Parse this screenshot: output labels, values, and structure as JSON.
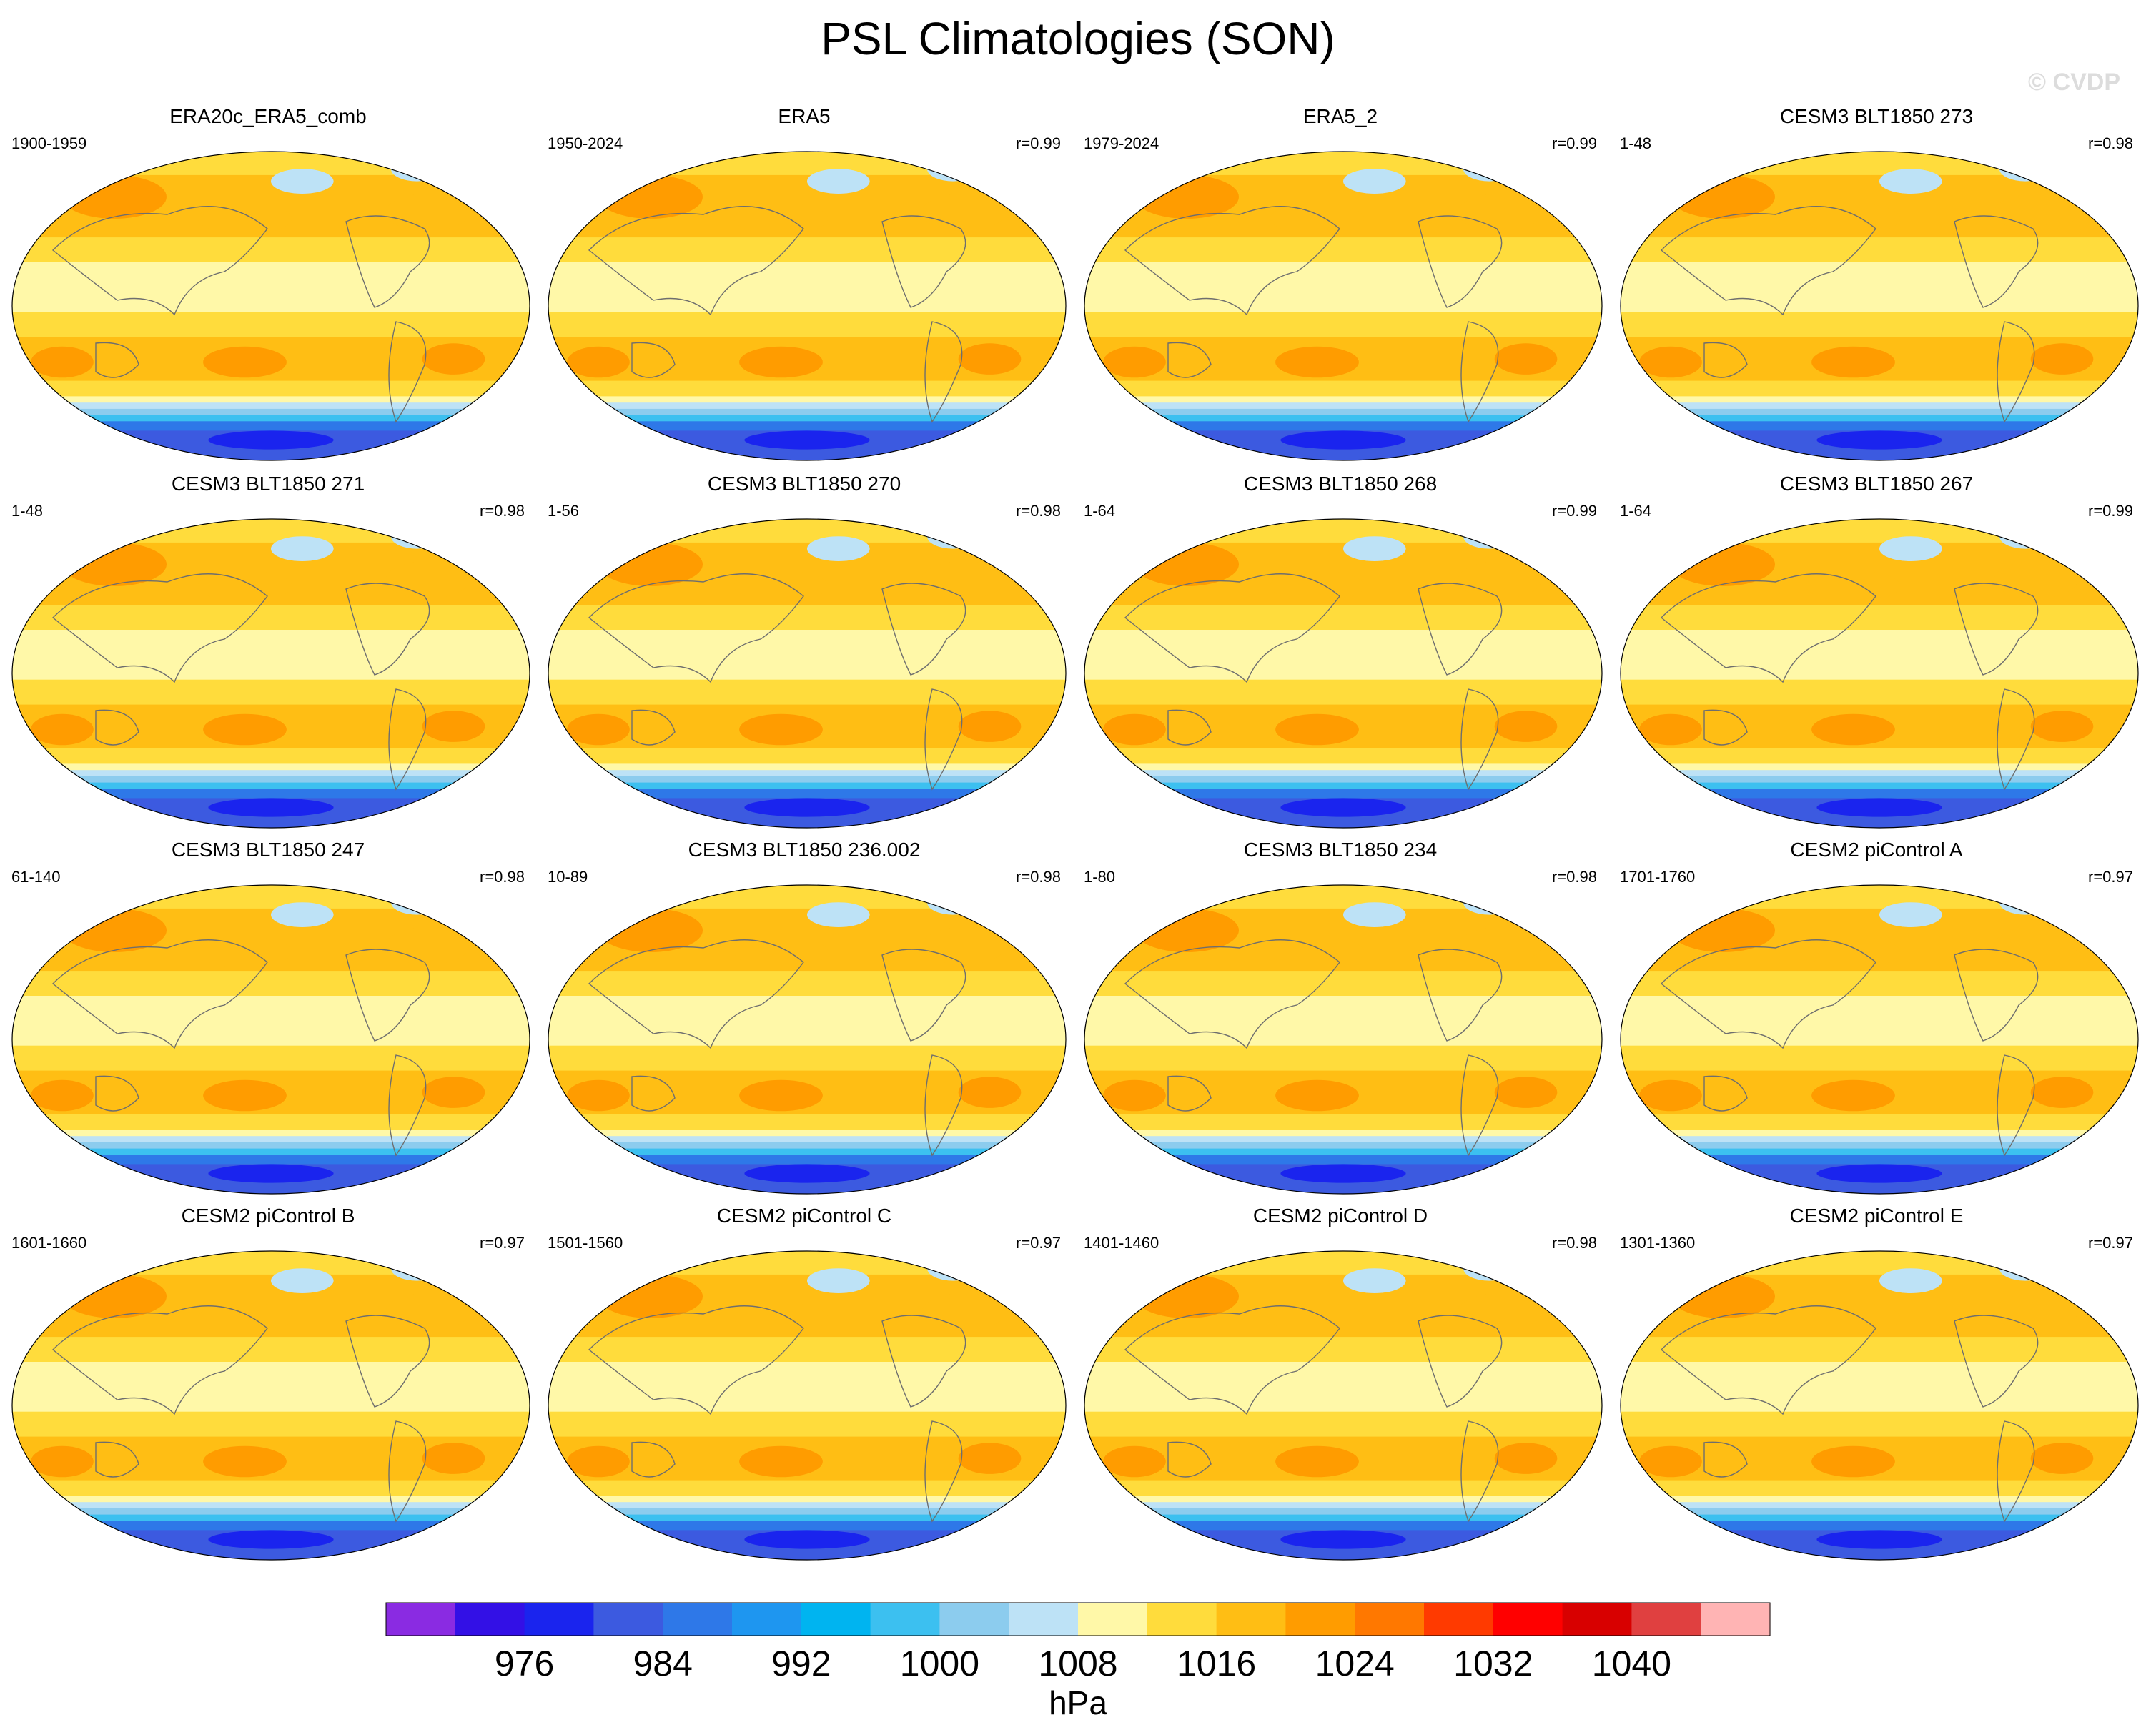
{
  "figure": {
    "title": "PSL Climatologies (SON)",
    "watermark": "© CVDP"
  },
  "chart_data": {
    "type": "heatmap",
    "map_projection": "Robinson",
    "title": "PSL Climatologies (SON)",
    "units": "hPa",
    "levels": [
      972,
      976,
      980,
      984,
      988,
      992,
      996,
      1000,
      1004,
      1008,
      1012,
      1016,
      1020,
      1024,
      1028,
      1032,
      1036,
      1040
    ],
    "colorbar_tick_labels": [
      "976",
      "984",
      "992",
      "1000",
      "1008",
      "1016",
      "1024",
      "1032",
      "1040"
    ],
    "colorbar_colors": [
      "#8a2be2",
      "#3310e6",
      "#1a24ee",
      "#3c5ae0",
      "#2e78e8",
      "#1e96f0",
      "#00b4f0",
      "#3cc0f0",
      "#8cccee",
      "#bde2f6",
      "#fff8a8",
      "#ffdc3c",
      "#ffbe14",
      "#ff9c00",
      "#ff7800",
      "#ff3a00",
      "#ff0000",
      "#d80000",
      "#e04040",
      "#ffb4b4"
    ],
    "panels": [
      {
        "title": "ERA20c_ERA5_comb",
        "years": "1900-1959",
        "r": ""
      },
      {
        "title": "ERA5",
        "years": "1950-2024",
        "r": "r=0.99"
      },
      {
        "title": "ERA5_2",
        "years": "1979-2024",
        "r": "r=0.99"
      },
      {
        "title": "CESM3 BLT1850 273",
        "years": "1-48",
        "r": "r=0.98"
      },
      {
        "title": "CESM3 BLT1850 271",
        "years": "1-48",
        "r": "r=0.98"
      },
      {
        "title": "CESM3 BLT1850 270",
        "years": "1-56",
        "r": "r=0.98"
      },
      {
        "title": "CESM3 BLT1850 268",
        "years": "1-64",
        "r": "r=0.99"
      },
      {
        "title": "CESM3 BLT1850 267",
        "years": "1-64",
        "r": "r=0.99"
      },
      {
        "title": "CESM3 BLT1850 247",
        "years": "61-140",
        "r": "r=0.98"
      },
      {
        "title": "CESM3 BLT1850 236.002",
        "years": "10-89",
        "r": "r=0.98"
      },
      {
        "title": "CESM3 BLT1850 234",
        "years": "1-80",
        "r": "r=0.98"
      },
      {
        "title": "CESM2 piControl A",
        "years": "1701-1760",
        "r": "r=0.97"
      },
      {
        "title": "CESM2 piControl B",
        "years": "1601-1660",
        "r": "r=0.97"
      },
      {
        "title": "CESM2 piControl C",
        "years": "1501-1560",
        "r": "r=0.97"
      },
      {
        "title": "CESM2 piControl D",
        "years": "1401-1460",
        "r": "r=0.98"
      },
      {
        "title": "CESM2 piControl E",
        "years": "1301-1360",
        "r": "r=0.97"
      }
    ]
  }
}
